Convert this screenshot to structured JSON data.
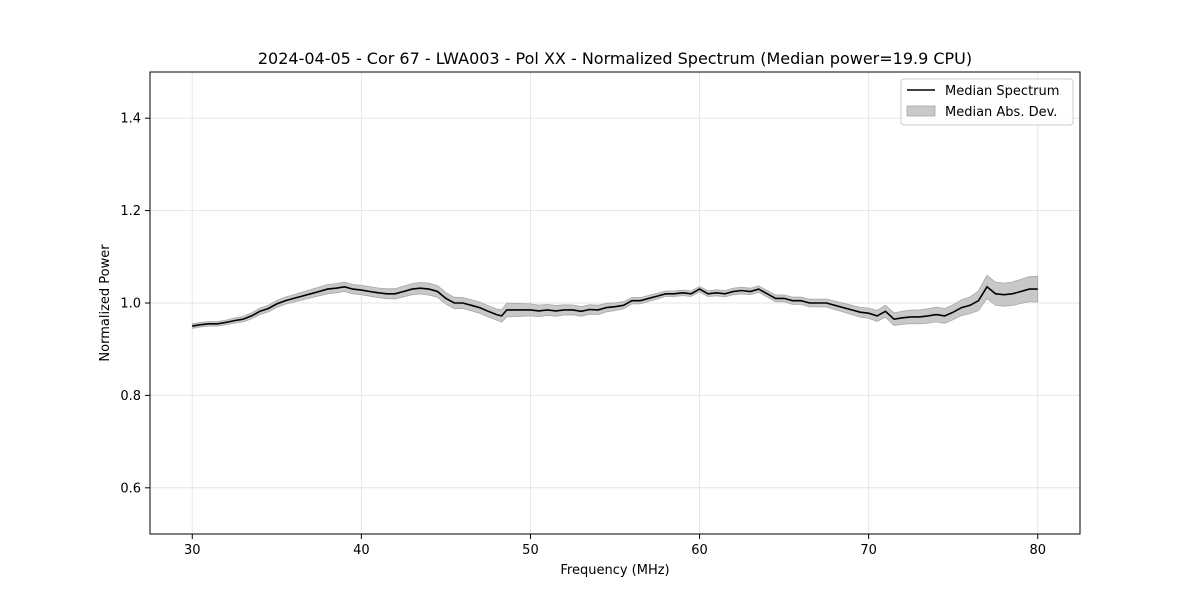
{
  "chart_data": {
    "type": "line",
    "title": "2024-04-05 - Cor 67 - LWA003 - Pol XX - Normalized Spectrum (Median power=19.9 CPU)",
    "xlabel": "Frequency (MHz)",
    "ylabel": "Normalized Power",
    "xlim": [
      27.5,
      82.5
    ],
    "ylim": [
      0.5,
      1.5
    ],
    "xticks": [
      30,
      40,
      50,
      60,
      70,
      80
    ],
    "yticks": [
      0.6,
      0.8,
      1.0,
      1.2,
      1.4
    ],
    "xtick_labels": [
      "30",
      "40",
      "50",
      "60",
      "70",
      "80"
    ],
    "ytick_labels": [
      "0.6",
      "0.8",
      "1.0",
      "1.2",
      "1.4"
    ],
    "grid": true,
    "legend_position": "top-right",
    "series": [
      {
        "name": "Median Spectrum",
        "kind": "line",
        "color": "#000000",
        "x": [
          30.0,
          30.5,
          31.0,
          31.5,
          32.0,
          32.5,
          33.0,
          33.5,
          34.0,
          34.5,
          35.0,
          35.5,
          36.0,
          36.5,
          37.0,
          37.5,
          38.0,
          38.5,
          39.0,
          39.5,
          40.0,
          40.5,
          41.0,
          41.5,
          42.0,
          42.5,
          43.0,
          43.5,
          44.0,
          44.5,
          45.0,
          45.5,
          46.0,
          46.5,
          47.0,
          47.5,
          48.0,
          48.3,
          48.6,
          49.0,
          49.5,
          50.0,
          50.5,
          51.0,
          51.5,
          52.0,
          52.5,
          53.0,
          53.5,
          54.0,
          54.5,
          55.0,
          55.5,
          56.0,
          56.5,
          57.0,
          57.5,
          58.0,
          58.5,
          59.0,
          59.5,
          60.0,
          60.5,
          61.0,
          61.5,
          62.0,
          62.5,
          63.0,
          63.5,
          64.0,
          64.5,
          65.0,
          65.5,
          66.0,
          66.5,
          67.0,
          67.5,
          68.0,
          68.5,
          69.0,
          69.5,
          70.0,
          70.5,
          71.0,
          71.5,
          72.0,
          72.5,
          73.0,
          73.5,
          74.0,
          74.5,
          75.0,
          75.5,
          76.0,
          76.5,
          77.0,
          77.5,
          78.0,
          78.5,
          79.0,
          79.5,
          80.0
        ],
        "y": [
          0.95,
          0.953,
          0.955,
          0.955,
          0.958,
          0.962,
          0.965,
          0.972,
          0.982,
          0.988,
          0.998,
          1.005,
          1.01,
          1.015,
          1.02,
          1.025,
          1.03,
          1.032,
          1.035,
          1.03,
          1.028,
          1.025,
          1.022,
          1.02,
          1.02,
          1.025,
          1.03,
          1.032,
          1.03,
          1.025,
          1.01,
          1.0,
          1.0,
          0.995,
          0.99,
          0.982,
          0.975,
          0.972,
          0.985,
          0.985,
          0.985,
          0.985,
          0.983,
          0.985,
          0.983,
          0.985,
          0.985,
          0.982,
          0.986,
          0.985,
          0.99,
          0.992,
          0.995,
          1.005,
          1.005,
          1.01,
          1.015,
          1.02,
          1.02,
          1.022,
          1.02,
          1.03,
          1.02,
          1.022,
          1.02,
          1.025,
          1.027,
          1.025,
          1.03,
          1.02,
          1.01,
          1.01,
          1.005,
          1.005,
          1.0,
          1.0,
          1.0,
          0.995,
          0.99,
          0.985,
          0.98,
          0.978,
          0.972,
          0.982,
          0.965,
          0.968,
          0.97,
          0.97,
          0.972,
          0.975,
          0.972,
          0.98,
          0.99,
          0.995,
          1.005,
          1.035,
          1.02,
          1.018,
          1.02,
          1.025,
          1.03,
          1.03
        ]
      },
      {
        "name": "Median Abs. Dev.",
        "kind": "band",
        "color": "#c8c8c8",
        "edge_color": "#a8a8a8",
        "x": [
          30.0,
          32.0,
          34.0,
          36.0,
          38.0,
          40.0,
          42.0,
          44.0,
          46.0,
          48.0,
          48.6,
          50.0,
          52.0,
          54.0,
          56.0,
          58.0,
          60.0,
          62.0,
          64.0,
          66.0,
          68.0,
          70.0,
          71.0,
          72.0,
          74.0,
          75.0,
          76.0,
          77.0,
          78.0,
          79.0,
          80.0
        ],
        "dev": [
          0.005,
          0.005,
          0.007,
          0.008,
          0.01,
          0.01,
          0.011,
          0.013,
          0.012,
          0.012,
          0.015,
          0.013,
          0.011,
          0.01,
          0.007,
          0.006,
          0.006,
          0.007,
          0.007,
          0.008,
          0.009,
          0.011,
          0.013,
          0.014,
          0.016,
          0.016,
          0.018,
          0.025,
          0.025,
          0.026,
          0.028
        ]
      }
    ]
  }
}
